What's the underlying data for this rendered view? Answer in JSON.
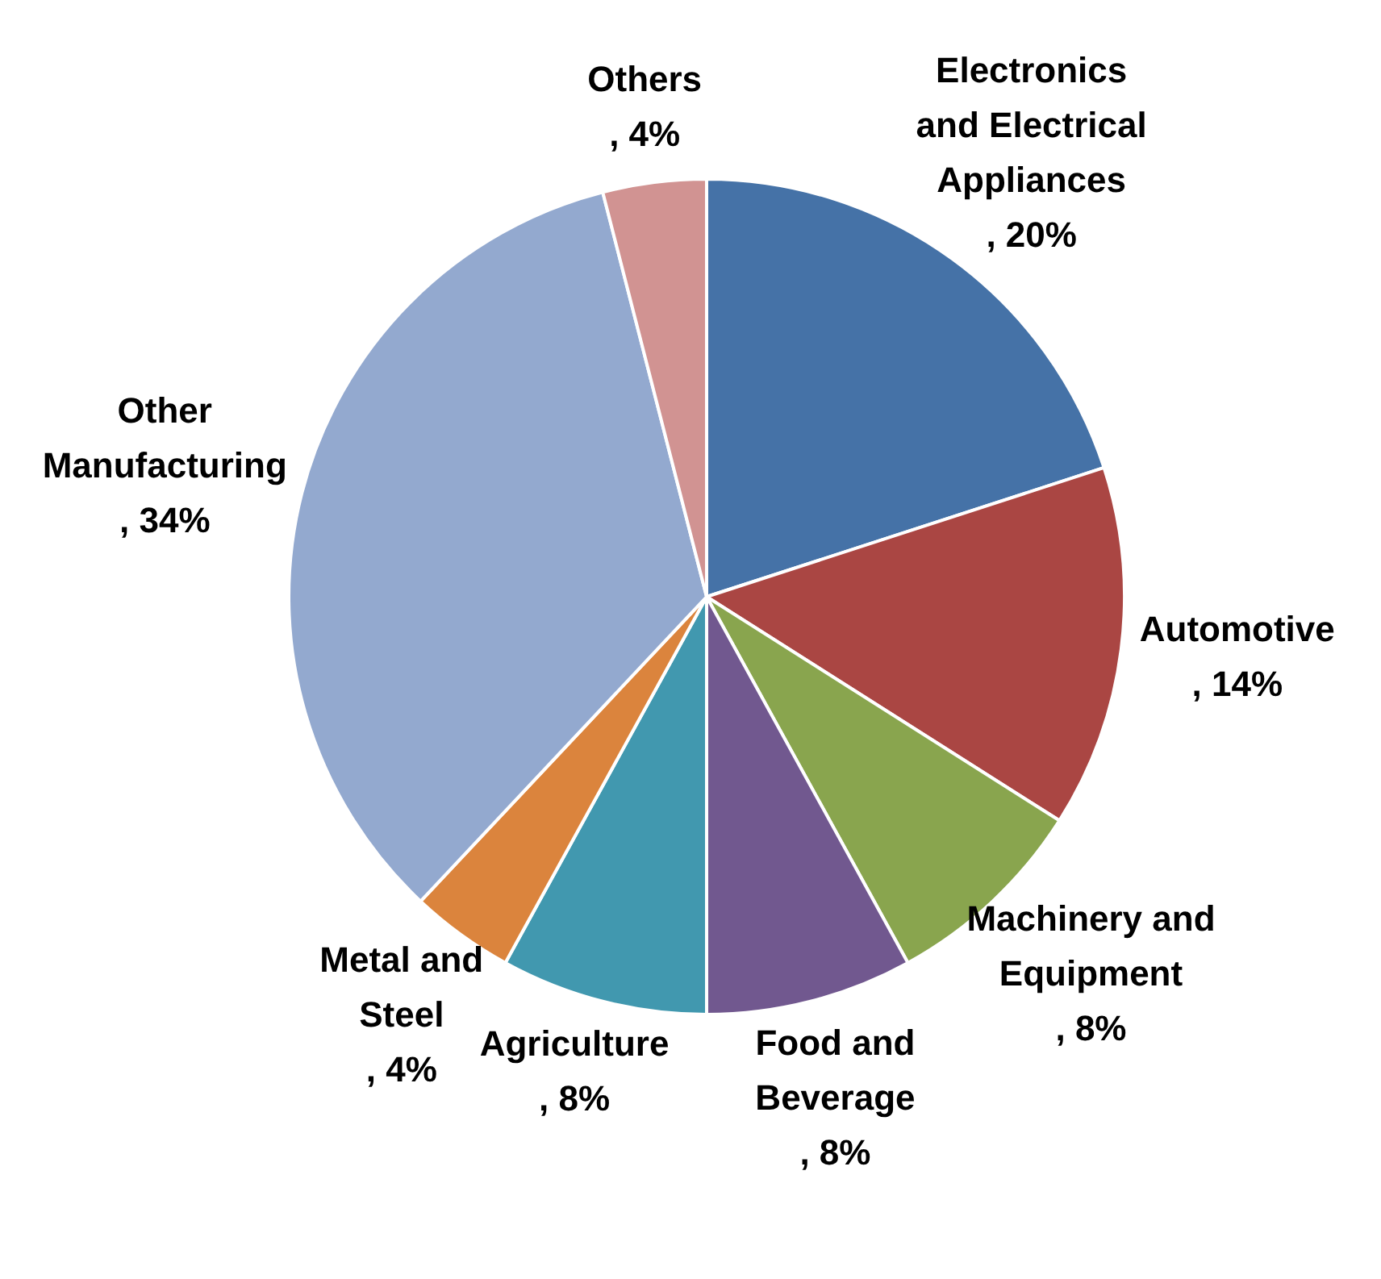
{
  "chart_data": {
    "type": "pie",
    "categories": [
      "Electronics and Electrical Appliances",
      "Automotive",
      "Machinery and Equipment",
      "Food and Beverage",
      "Agriculture",
      "Metal and Steel",
      "Other Manufacturing",
      "Others"
    ],
    "values": [
      20,
      14,
      8,
      8,
      8,
      4,
      34,
      4
    ],
    "value_labels": [
      ", 20%",
      ", 14%",
      ", 8%",
      ", 8%",
      ", 8%",
      ", 4%",
      ", 34%",
      ", 4%"
    ],
    "colors": [
      "#4572a7",
      "#aa4643",
      "#89a54e",
      "#71588f",
      "#4198af",
      "#db843d",
      "#93a9cf",
      "#d19392"
    ],
    "legend": false
  }
}
